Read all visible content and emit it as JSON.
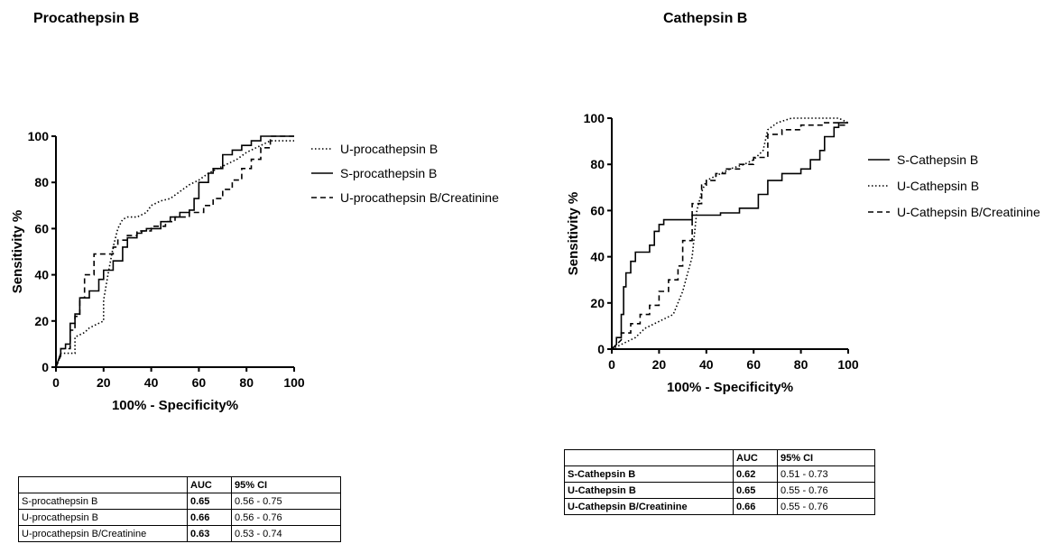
{
  "panels": [
    {
      "title": "Procathepsin B",
      "legend": [
        "U-procathepsin B",
        "S-procathepsin B",
        "U-procathepsin B/Creatinine"
      ],
      "table": {
        "headers": [
          "",
          "AUC",
          "95% CI"
        ],
        "rows": [
          {
            "label": "S-procathepsin B",
            "auc": "0.65",
            "ci": "0.56 - 0.75"
          },
          {
            "label": "U-procathepsin B",
            "auc": "0.66",
            "ci": "0.56 - 0.76"
          },
          {
            "label": "U-procathepsin B/Creatinine",
            "auc": "0.63",
            "ci": "0.53 - 0.74"
          }
        ]
      }
    },
    {
      "title": "Cathepsin B",
      "legend": [
        "S-Cathepsin B",
        "U-Cathepsin B",
        "U-Cathepsin B/Creatinine"
      ],
      "table": {
        "headers": [
          "",
          "AUC",
          "95% CI"
        ],
        "rows": [
          {
            "label": "S-Cathepsin B",
            "auc": "0.62",
            "ci": "0.51 - 0.73"
          },
          {
            "label": "U-Cathepsin B",
            "auc": "0.65",
            "ci": "0.55 - 0.76"
          },
          {
            "label": "U-Cathepsin B/Creatinine",
            "auc": "0.66",
            "ci": "0.55 - 0.76"
          }
        ]
      }
    }
  ],
  "chart_data": [
    {
      "type": "line",
      "title": "Procathepsin B",
      "xlabel": "100% - Specificity%",
      "ylabel": "Sensitivity %",
      "xlim": [
        0,
        100
      ],
      "ylim": [
        0,
        100
      ],
      "xticks": [
        0,
        20,
        40,
        60,
        80,
        100
      ],
      "yticks": [
        0,
        20,
        40,
        60,
        80,
        100
      ],
      "grid": false,
      "legend_position": "right",
      "series": [
        {
          "name": "U-procathepsin B",
          "style": "dotted",
          "x": [
            0,
            2,
            2,
            8,
            8,
            12,
            14,
            16,
            18,
            20,
            20,
            22,
            24,
            26,
            28,
            30,
            34,
            38,
            40,
            44,
            48,
            52,
            56,
            60,
            64,
            68,
            72,
            76,
            80,
            84,
            88,
            90,
            96,
            100
          ],
          "y": [
            0,
            5,
            6,
            6,
            13,
            15,
            17,
            18,
            19,
            20,
            29,
            41,
            52,
            60,
            64,
            65,
            65,
            67,
            70,
            72,
            73,
            76,
            79,
            81,
            84,
            86,
            88,
            90,
            93,
            95,
            97,
            98,
            98,
            98
          ]
        },
        {
          "name": "S-procathepsin B",
          "style": "solid",
          "x": [
            0,
            2,
            2,
            4,
            4,
            6,
            6,
            8,
            8,
            10,
            10,
            14,
            14,
            18,
            18,
            20,
            20,
            24,
            24,
            28,
            28,
            30,
            30,
            34,
            34,
            36,
            36,
            38,
            38,
            44,
            44,
            48,
            48,
            52,
            52,
            56,
            56,
            58,
            58,
            60,
            60,
            64,
            64,
            66,
            66,
            70,
            70,
            74,
            74,
            78,
            78,
            82,
            82,
            86,
            86,
            100
          ],
          "y": [
            0,
            6,
            8,
            8,
            10,
            10,
            19,
            19,
            23,
            23,
            30,
            30,
            33,
            33,
            38,
            38,
            42,
            42,
            46,
            46,
            52,
            52,
            56,
            56,
            58,
            58,
            59,
            59,
            60,
            60,
            63,
            63,
            65,
            65,
            67,
            67,
            68,
            68,
            73,
            73,
            80,
            80,
            84,
            84,
            86,
            86,
            92,
            92,
            94,
            94,
            96,
            96,
            98,
            98,
            100,
            100
          ]
        },
        {
          "name": "U-procathepsin B/Creatinine",
          "style": "dashed",
          "x": [
            0,
            2,
            2,
            6,
            6,
            8,
            8,
            10,
            10,
            12,
            12,
            16,
            16,
            24,
            24,
            26,
            26,
            30,
            30,
            34,
            34,
            40,
            40,
            46,
            46,
            50,
            50,
            56,
            56,
            62,
            62,
            66,
            66,
            70,
            70,
            74,
            74,
            78,
            78,
            82,
            82,
            86,
            86,
            90,
            90,
            100
          ],
          "y": [
            0,
            5,
            8,
            8,
            16,
            16,
            22,
            22,
            30,
            30,
            40,
            40,
            49,
            49,
            52,
            52,
            55,
            55,
            57,
            57,
            59,
            59,
            61,
            61,
            63,
            63,
            65,
            65,
            67,
            67,
            70,
            70,
            73,
            73,
            77,
            77,
            81,
            81,
            86,
            86,
            90,
            90,
            95,
            95,
            100,
            100
          ]
        }
      ]
    },
    {
      "type": "line",
      "title": "Cathepsin B",
      "xlabel": "100% - Specificity%",
      "ylabel": "Sensitivity %",
      "xlim": [
        0,
        100
      ],
      "ylim": [
        0,
        100
      ],
      "xticks": [
        0,
        20,
        40,
        60,
        80,
        100
      ],
      "yticks": [
        0,
        20,
        40,
        60,
        80,
        100
      ],
      "grid": false,
      "legend_position": "right",
      "series": [
        {
          "name": "S-Cathepsin B",
          "style": "solid",
          "x": [
            0,
            2,
            2,
            4,
            4,
            5,
            5,
            6,
            6,
            8,
            8,
            10,
            10,
            16,
            16,
            18,
            18,
            20,
            20,
            22,
            22,
            34,
            34,
            46,
            46,
            54,
            54,
            62,
            62,
            66,
            66,
            72,
            72,
            80,
            80,
            84,
            84,
            88,
            88,
            90,
            90,
            94,
            94,
            96,
            96,
            100
          ],
          "y": [
            0,
            2,
            5,
            5,
            15,
            15,
            27,
            27,
            33,
            33,
            38,
            38,
            42,
            42,
            45,
            45,
            51,
            51,
            54,
            54,
            56,
            56,
            58,
            58,
            59,
            59,
            61,
            61,
            67,
            67,
            73,
            73,
            76,
            76,
            78,
            78,
            82,
            82,
            86,
            86,
            92,
            92,
            96,
            96,
            98,
            98
          ]
        },
        {
          "name": "U-Cathepsin B",
          "style": "dotted",
          "x": [
            0,
            6,
            10,
            14,
            20,
            26,
            30,
            34,
            36,
            38,
            40,
            44,
            50,
            56,
            60,
            64,
            66,
            70,
            76,
            84,
            90,
            96,
            100
          ],
          "y": [
            0,
            3,
            5,
            9,
            12,
            15,
            25,
            40,
            60,
            68,
            73,
            75,
            78,
            80,
            82,
            86,
            95,
            98,
            100,
            100,
            100,
            100,
            98
          ]
        },
        {
          "name": "U-Cathepsin B/Creatinine",
          "style": "dashed",
          "x": [
            0,
            4,
            4,
            8,
            8,
            12,
            12,
            16,
            16,
            20,
            20,
            24,
            24,
            28,
            28,
            30,
            30,
            34,
            34,
            38,
            38,
            40,
            40,
            44,
            44,
            48,
            48,
            54,
            54,
            60,
            60,
            66,
            66,
            72,
            72,
            80,
            80,
            90,
            90,
            96,
            96,
            100
          ],
          "y": [
            0,
            4,
            7,
            7,
            11,
            11,
            15,
            15,
            19,
            19,
            25,
            25,
            30,
            30,
            36,
            36,
            47,
            47,
            63,
            63,
            71,
            71,
            73,
            73,
            76,
            76,
            78,
            78,
            80,
            80,
            83,
            83,
            93,
            93,
            95,
            95,
            97,
            97,
            98,
            98,
            97,
            97
          ]
        }
      ]
    }
  ]
}
